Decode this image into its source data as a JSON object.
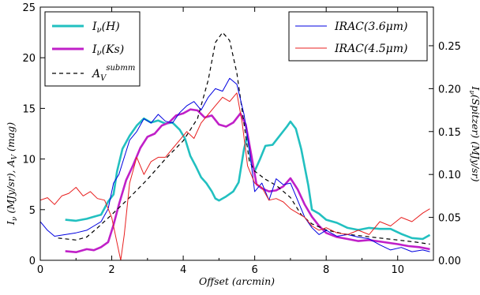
{
  "chart_data": {
    "type": "line",
    "xlabel": "Offset (arcmin)",
    "ylabel_left": "I_ν (MJy/sr),  A_V (mag)",
    "ylabel_right": "I_ν(Spitzer) (MJy/sr)",
    "xlim": [
      0,
      11
    ],
    "ylim_left": [
      0,
      25
    ],
    "ylim_right": [
      0,
      0.295
    ],
    "x_ticks": [
      "0",
      "2",
      "4",
      "6",
      "8",
      "10"
    ],
    "y_ticks_left": [
      "0",
      "5",
      "10",
      "15",
      "20",
      "25"
    ],
    "y_ticks_right": [
      "0.00",
      "0.05",
      "0.10",
      "0.15",
      "0.20",
      "0.25"
    ],
    "legend_left": {
      "placement": "top-left",
      "entries": [
        "I_ν(H)",
        "I_ν(Ks)",
        "A_V^submm"
      ]
    },
    "legend_right": {
      "placement": "top-right",
      "entries": [
        "IRAC(3.6μm)",
        "IRAC(4.5μm)"
      ]
    },
    "series": [
      {
        "name": "I_ν(H)",
        "axis": "left",
        "color": "#22c0c0",
        "style": "solid",
        "points": [
          [
            0.7,
            4
          ],
          [
            1.0,
            3.9
          ],
          [
            1.3,
            4.1
          ],
          [
            1.5,
            4.3
          ],
          [
            1.7,
            4.5
          ],
          [
            1.9,
            5.8
          ],
          [
            2.05,
            6.5
          ],
          [
            2.15,
            8.8
          ],
          [
            2.3,
            11
          ],
          [
            2.5,
            12.3
          ],
          [
            2.7,
            13.3
          ],
          [
            2.9,
            14
          ],
          [
            3.1,
            13.6
          ],
          [
            3.3,
            13.8
          ],
          [
            3.5,
            13.5
          ],
          [
            3.7,
            13.6
          ],
          [
            3.9,
            12.9
          ],
          [
            4.05,
            12
          ],
          [
            4.2,
            10.3
          ],
          [
            4.35,
            9.3
          ],
          [
            4.5,
            8.2
          ],
          [
            4.65,
            7.6
          ],
          [
            4.8,
            6.8
          ],
          [
            4.9,
            6.1
          ],
          [
            5.0,
            5.9
          ],
          [
            5.2,
            6.3
          ],
          [
            5.4,
            6.8
          ],
          [
            5.55,
            7.7
          ],
          [
            5.7,
            11
          ],
          [
            5.8,
            12.4
          ],
          [
            5.9,
            9.8
          ],
          [
            6.0,
            8.8
          ],
          [
            6.15,
            10
          ],
          [
            6.3,
            11.3
          ],
          [
            6.5,
            11.4
          ],
          [
            6.7,
            12.3
          ],
          [
            6.9,
            13.2
          ],
          [
            7.0,
            13.7
          ],
          [
            7.15,
            13
          ],
          [
            7.3,
            11
          ],
          [
            7.5,
            7.4
          ],
          [
            7.6,
            5
          ],
          [
            7.8,
            4.6
          ],
          [
            8.0,
            4
          ],
          [
            8.3,
            3.7
          ],
          [
            8.6,
            3.2
          ],
          [
            8.9,
            3
          ],
          [
            9.2,
            3.2
          ],
          [
            9.5,
            3.1
          ],
          [
            9.8,
            3.1
          ],
          [
            10.1,
            2.6
          ],
          [
            10.4,
            2.2
          ],
          [
            10.7,
            2.1
          ],
          [
            10.9,
            2.5
          ]
        ]
      },
      {
        "name": "I_ν(Ks)",
        "axis": "left",
        "color": "#c020c8",
        "style": "solid",
        "points": [
          [
            0.7,
            0.9
          ],
          [
            1.0,
            0.8
          ],
          [
            1.3,
            1.1
          ],
          [
            1.5,
            1
          ],
          [
            1.7,
            1.3
          ],
          [
            1.9,
            1.8
          ],
          [
            2.05,
            3.5
          ],
          [
            2.2,
            5.5
          ],
          [
            2.4,
            7.9
          ],
          [
            2.6,
            9.4
          ],
          [
            2.8,
            11.1
          ],
          [
            3.0,
            12.2
          ],
          [
            3.2,
            12.5
          ],
          [
            3.4,
            13.3
          ],
          [
            3.6,
            13.6
          ],
          [
            3.8,
            14.3
          ],
          [
            4.0,
            14.5
          ],
          [
            4.2,
            14.9
          ],
          [
            4.4,
            14.8
          ],
          [
            4.6,
            14.1
          ],
          [
            4.8,
            14.3
          ],
          [
            5.0,
            13.4
          ],
          [
            5.2,
            13.2
          ],
          [
            5.4,
            13.6
          ],
          [
            5.6,
            14.5
          ],
          [
            5.75,
            13.4
          ],
          [
            5.9,
            10.5
          ],
          [
            6.05,
            7.5
          ],
          [
            6.2,
            7.1
          ],
          [
            6.4,
            6.8
          ],
          [
            6.6,
            6.9
          ],
          [
            6.8,
            7.3
          ],
          [
            7.0,
            8.1
          ],
          [
            7.2,
            7
          ],
          [
            7.4,
            5.5
          ],
          [
            7.6,
            4.3
          ],
          [
            7.8,
            3.4
          ],
          [
            8.0,
            2.7
          ],
          [
            8.3,
            2.3
          ],
          [
            8.6,
            2.1
          ],
          [
            8.9,
            1.9
          ],
          [
            9.2,
            2
          ],
          [
            9.6,
            1.8
          ],
          [
            10.0,
            1.6
          ],
          [
            10.3,
            1.4
          ],
          [
            10.6,
            1.3
          ],
          [
            10.9,
            1.1
          ]
        ]
      },
      {
        "name": "A_V^submm",
        "axis": "left",
        "color": "#000000",
        "style": "dashed",
        "points": [
          [
            0.5,
            2.2
          ],
          [
            1.0,
            2
          ],
          [
            1.3,
            2.3
          ],
          [
            1.6,
            3.2
          ],
          [
            2.0,
            4.5
          ],
          [
            2.5,
            6.2
          ],
          [
            3.0,
            8
          ],
          [
            3.5,
            10
          ],
          [
            4.0,
            11.8
          ],
          [
            4.4,
            14
          ],
          [
            4.7,
            17.8
          ],
          [
            4.9,
            21.5
          ],
          [
            5.1,
            22.5
          ],
          [
            5.3,
            21.7
          ],
          [
            5.5,
            18.5
          ],
          [
            5.7,
            13.5
          ],
          [
            5.85,
            9.8
          ],
          [
            6.0,
            8.8
          ],
          [
            6.3,
            8
          ],
          [
            6.6,
            7.4
          ],
          [
            7.0,
            6.2
          ],
          [
            7.3,
            4.5
          ],
          [
            7.6,
            3.6
          ],
          [
            8.0,
            3
          ],
          [
            8.5,
            2.6
          ],
          [
            9.0,
            2.4
          ],
          [
            9.5,
            2.2
          ],
          [
            10.0,
            2
          ],
          [
            10.5,
            1.8
          ],
          [
            10.9,
            1.6
          ]
        ]
      },
      {
        "name": "IRAC(3.6μm)",
        "axis": "right",
        "color": "#0000e0",
        "style": "solid",
        "points": [
          [
            0,
            0.045
          ],
          [
            0.2,
            0.035
          ],
          [
            0.4,
            0.028
          ],
          [
            0.7,
            0.03
          ],
          [
            1.0,
            0.032
          ],
          [
            1.3,
            0.035
          ],
          [
            1.5,
            0.04
          ],
          [
            1.7,
            0.045
          ],
          [
            1.9,
            0.06
          ],
          [
            2.05,
            0.09
          ],
          [
            2.2,
            0.1
          ],
          [
            2.35,
            0.12
          ],
          [
            2.5,
            0.14
          ],
          [
            2.7,
            0.15
          ],
          [
            2.9,
            0.165
          ],
          [
            3.1,
            0.16
          ],
          [
            3.3,
            0.17
          ],
          [
            3.5,
            0.162
          ],
          [
            3.7,
            0.16
          ],
          [
            3.9,
            0.172
          ],
          [
            4.1,
            0.18
          ],
          [
            4.3,
            0.185
          ],
          [
            4.5,
            0.175
          ],
          [
            4.7,
            0.19
          ],
          [
            4.9,
            0.2
          ],
          [
            5.1,
            0.197
          ],
          [
            5.3,
            0.212
          ],
          [
            5.5,
            0.205
          ],
          [
            5.7,
            0.17
          ],
          [
            5.85,
            0.13
          ],
          [
            6.0,
            0.08
          ],
          [
            6.2,
            0.09
          ],
          [
            6.4,
            0.07
          ],
          [
            6.6,
            0.095
          ],
          [
            6.8,
            0.088
          ],
          [
            7.0,
            0.09
          ],
          [
            7.2,
            0.07
          ],
          [
            7.4,
            0.05
          ],
          [
            7.6,
            0.038
          ],
          [
            7.8,
            0.03
          ],
          [
            8.0,
            0.035
          ],
          [
            8.3,
            0.028
          ],
          [
            8.6,
            0.03
          ],
          [
            8.9,
            0.027
          ],
          [
            9.2,
            0.025
          ],
          [
            9.5,
            0.018
          ],
          [
            9.8,
            0.012
          ],
          [
            10.1,
            0.015
          ],
          [
            10.4,
            0.01
          ],
          [
            10.7,
            0.012
          ],
          [
            10.9,
            0.01
          ]
        ]
      },
      {
        "name": "IRAC(4.5μm)",
        "axis": "right",
        "color": "#e82020",
        "style": "solid",
        "points": [
          [
            0,
            0.07
          ],
          [
            0.2,
            0.073
          ],
          [
            0.4,
            0.065
          ],
          [
            0.6,
            0.075
          ],
          [
            0.8,
            0.078
          ],
          [
            1.0,
            0.085
          ],
          [
            1.2,
            0.075
          ],
          [
            1.4,
            0.08
          ],
          [
            1.6,
            0.072
          ],
          [
            1.8,
            0.07
          ],
          [
            2.0,
            0.05
          ],
          [
            2.15,
            0.02
          ],
          [
            2.25,
            0
          ],
          [
            2.35,
            0.03
          ],
          [
            2.5,
            0.09
          ],
          [
            2.7,
            0.12
          ],
          [
            2.9,
            0.1
          ],
          [
            3.1,
            0.115
          ],
          [
            3.3,
            0.12
          ],
          [
            3.5,
            0.12
          ],
          [
            3.7,
            0.13
          ],
          [
            3.9,
            0.14
          ],
          [
            4.1,
            0.15
          ],
          [
            4.3,
            0.142
          ],
          [
            4.5,
            0.16
          ],
          [
            4.7,
            0.17
          ],
          [
            4.9,
            0.18
          ],
          [
            5.1,
            0.19
          ],
          [
            5.3,
            0.185
          ],
          [
            5.5,
            0.195
          ],
          [
            5.65,
            0.16
          ],
          [
            5.8,
            0.11
          ],
          [
            6.0,
            0.09
          ],
          [
            6.2,
            0.085
          ],
          [
            6.4,
            0.07
          ],
          [
            6.6,
            0.072
          ],
          [
            6.8,
            0.068
          ],
          [
            7.0,
            0.06
          ],
          [
            7.2,
            0.055
          ],
          [
            7.4,
            0.05
          ],
          [
            7.6,
            0.04
          ],
          [
            7.8,
            0.035
          ],
          [
            8.0,
            0.038
          ],
          [
            8.3,
            0.032
          ],
          [
            8.6,
            0.03
          ],
          [
            8.9,
            0.035
          ],
          [
            9.2,
            0.03
          ],
          [
            9.5,
            0.045
          ],
          [
            9.8,
            0.04
          ],
          [
            10.1,
            0.05
          ],
          [
            10.4,
            0.045
          ],
          [
            10.7,
            0.055
          ],
          [
            10.9,
            0.06
          ]
        ]
      }
    ]
  }
}
